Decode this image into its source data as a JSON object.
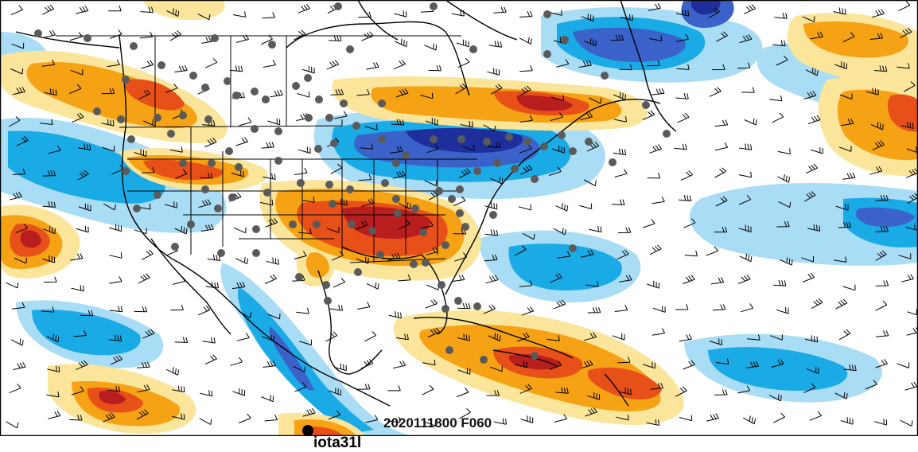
{
  "map": {
    "valid_time_label": "2020111800 F060",
    "storm_label": "iota31l",
    "colors": {
      "neg_light": "#a9dcf5",
      "neg_mid": "#1aaae6",
      "neg_strong": "#3a62c8",
      "neg_extreme": "#1e2f9c",
      "pos_light": "#fbe59a",
      "pos_mid": "#f5a214",
      "pos_strong": "#e8501a",
      "pos_extreme": "#b81e1e",
      "station_dot": "#5a5a5a",
      "storm_dot": "#000000",
      "coastline": "#000000"
    },
    "features": [
      "coastlines",
      "state-borders",
      "wind-barbs",
      "observation-stations",
      "storm-center-marker"
    ]
  }
}
